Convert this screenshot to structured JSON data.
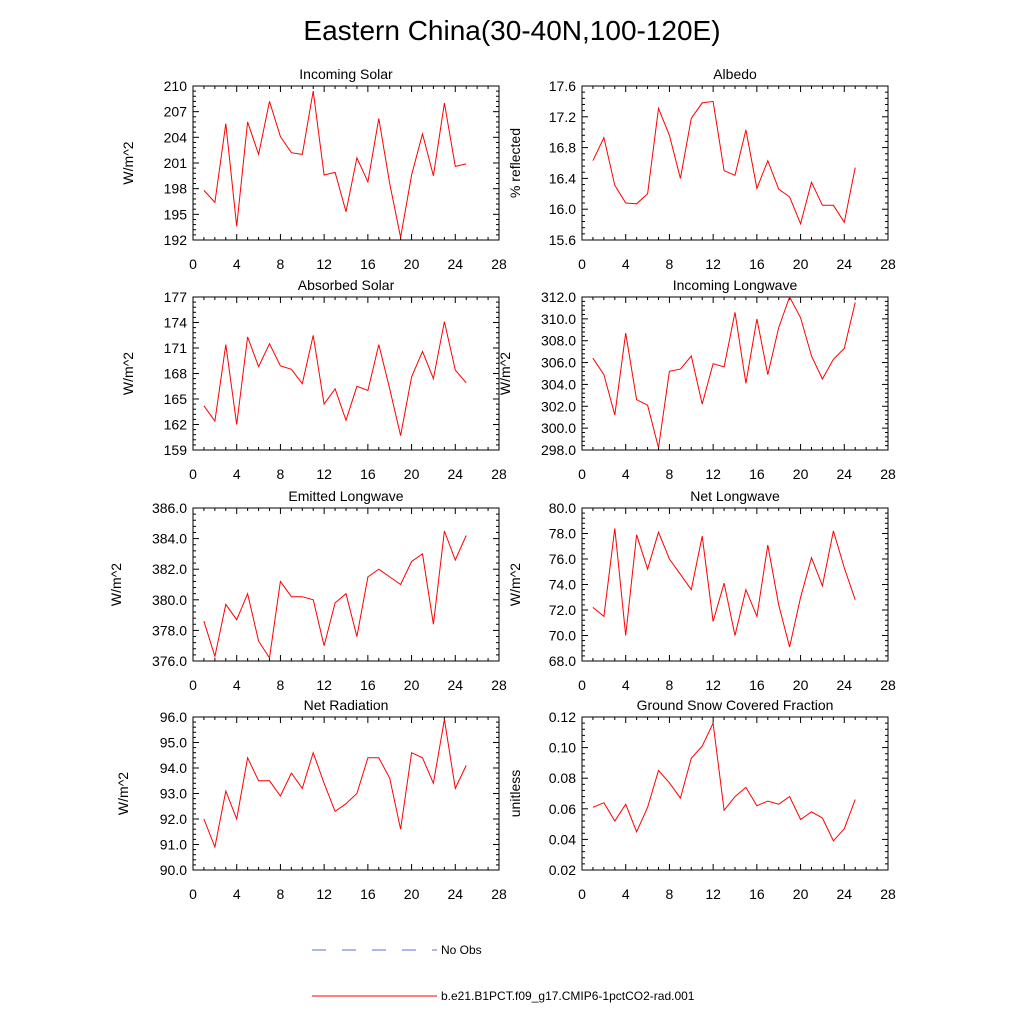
{
  "title": "Eastern China(30-40N,100-120E)",
  "legend": {
    "obs_label": "No Obs",
    "obs_color": "#5a6fd6",
    "model_label": "b.e21.B1PCT.f09_g17.CMIP6-1pctCO2-rad.001",
    "model_color": "#ff0000"
  },
  "chart_data": [
    {
      "type": "line",
      "title": "Incoming Solar",
      "xlabel": "",
      "ylabel": "W/m^2",
      "xlim": [
        0,
        28
      ],
      "xticks": [
        0,
        4,
        8,
        12,
        16,
        20,
        24,
        28
      ],
      "ylim": [
        192,
        210
      ],
      "yticks": [
        192,
        195,
        198,
        201,
        204,
        207,
        210
      ],
      "ytick_labels": [
        "192",
        "195",
        "198",
        "201",
        "204",
        "207",
        "210"
      ],
      "series": [
        {
          "x": [
            1,
            2,
            3,
            4,
            5,
            6,
            7,
            8,
            9,
            10,
            11,
            12,
            13,
            14,
            15,
            16,
            17,
            18,
            19,
            20,
            21,
            22,
            23,
            24,
            25
          ],
          "values": [
            197.8,
            196.4,
            205.6,
            193.6,
            205.8,
            202.0,
            208.2,
            204.1,
            202.2,
            202.0,
            209.4,
            199.6,
            199.9,
            195.3,
            201.6,
            198.8,
            206.2,
            198.6,
            192.3,
            199.6,
            204.4,
            199.5,
            208.0,
            200.6,
            200.9
          ]
        }
      ]
    },
    {
      "type": "line",
      "title": "Albedo",
      "xlabel": "",
      "ylabel": "% reflected",
      "xlim": [
        0,
        28
      ],
      "xticks": [
        0,
        4,
        8,
        12,
        16,
        20,
        24,
        28
      ],
      "ylim": [
        15.6,
        17.6
      ],
      "yticks": [
        15.6,
        16.0,
        16.4,
        16.8,
        17.2,
        17.6
      ],
      "ytick_labels": [
        "15.6",
        "16.0",
        "16.4",
        "16.8",
        "17.2",
        "17.6"
      ],
      "series": [
        {
          "x": [
            1,
            2,
            3,
            4,
            5,
            6,
            7,
            8,
            9,
            10,
            11,
            12,
            13,
            14,
            15,
            16,
            17,
            18,
            19,
            20,
            21,
            22,
            23,
            24,
            25
          ],
          "values": [
            16.63,
            16.93,
            16.31,
            16.08,
            16.07,
            16.2,
            17.31,
            16.96,
            16.4,
            17.18,
            17.38,
            17.4,
            16.5,
            16.44,
            17.03,
            16.27,
            16.63,
            16.26,
            16.16,
            15.81,
            16.35,
            16.05,
            16.05,
            15.83,
            16.54
          ]
        }
      ]
    },
    {
      "type": "line",
      "title": "Absorbed Solar",
      "xlabel": "",
      "ylabel": "W/m^2",
      "xlim": [
        0,
        28
      ],
      "xticks": [
        0,
        4,
        8,
        12,
        16,
        20,
        24,
        28
      ],
      "ylim": [
        159,
        177
      ],
      "yticks": [
        159,
        162,
        165,
        168,
        171,
        174,
        177
      ],
      "ytick_labels": [
        "159",
        "162",
        "165",
        "168",
        "171",
        "174",
        "177"
      ],
      "series": [
        {
          "x": [
            1,
            2,
            3,
            4,
            5,
            6,
            7,
            8,
            9,
            10,
            11,
            12,
            13,
            14,
            15,
            16,
            17,
            18,
            19,
            20,
            21,
            22,
            23,
            24,
            25
          ],
          "values": [
            164.2,
            162.4,
            171.4,
            162.0,
            172.3,
            168.8,
            171.5,
            168.9,
            168.5,
            166.8,
            172.5,
            164.4,
            166.2,
            162.5,
            166.5,
            166.0,
            171.4,
            166.2,
            160.7,
            167.6,
            170.6,
            167.4,
            174.1,
            168.4,
            166.9
          ]
        }
      ]
    },
    {
      "type": "line",
      "title": "Incoming Longwave",
      "xlabel": "",
      "ylabel": "W/m^2",
      "xlim": [
        0,
        28
      ],
      "xticks": [
        0,
        4,
        8,
        12,
        16,
        20,
        24,
        28
      ],
      "ylim": [
        298.0,
        312.0
      ],
      "yticks": [
        298.0,
        300.0,
        302.0,
        304.0,
        306.0,
        308.0,
        310.0,
        312.0
      ],
      "ytick_labels": [
        "298.0",
        "300.0",
        "302.0",
        "304.0",
        "306.0",
        "308.0",
        "310.0",
        "312.0"
      ],
      "series": [
        {
          "x": [
            1,
            2,
            3,
            4,
            5,
            6,
            7,
            8,
            9,
            10,
            11,
            12,
            13,
            14,
            15,
            16,
            17,
            18,
            19,
            20,
            21,
            22,
            23,
            24,
            25
          ],
          "values": [
            306.4,
            304.9,
            301.2,
            308.7,
            302.6,
            302.1,
            298.2,
            305.2,
            305.4,
            306.6,
            302.2,
            305.9,
            305.6,
            310.6,
            304.1,
            310.0,
            304.9,
            309.2,
            312.0,
            310.1,
            306.6,
            304.5,
            306.3,
            307.3,
            311.5
          ]
        }
      ]
    },
    {
      "type": "line",
      "title": "Emitted Longwave",
      "xlabel": "",
      "ylabel": "W/m^2",
      "xlim": [
        0,
        28
      ],
      "xticks": [
        0,
        4,
        8,
        12,
        16,
        20,
        24,
        28
      ],
      "ylim": [
        376.0,
        386.0
      ],
      "yticks": [
        376.0,
        378.0,
        380.0,
        382.0,
        384.0,
        386.0
      ],
      "ytick_labels": [
        "376.0",
        "378.0",
        "380.0",
        "382.0",
        "384.0",
        "386.0"
      ],
      "series": [
        {
          "x": [
            1,
            2,
            3,
            4,
            5,
            6,
            7,
            8,
            9,
            10,
            11,
            12,
            13,
            14,
            15,
            16,
            17,
            18,
            19,
            20,
            21,
            22,
            23,
            24,
            25
          ],
          "values": [
            378.6,
            376.3,
            379.7,
            378.7,
            380.4,
            377.3,
            376.2,
            381.2,
            380.2,
            380.2,
            380.0,
            377.0,
            379.8,
            380.4,
            377.6,
            381.5,
            382.0,
            381.5,
            381.0,
            382.5,
            383.0,
            378.4,
            384.5,
            382.6,
            384.2
          ]
        }
      ]
    },
    {
      "type": "line",
      "title": "Net Longwave",
      "xlabel": "",
      "ylabel": "W/m^2",
      "xlim": [
        0,
        28
      ],
      "xticks": [
        0,
        4,
        8,
        12,
        16,
        20,
        24,
        28
      ],
      "ylim": [
        68.0,
        80.0
      ],
      "yticks": [
        68.0,
        70.0,
        72.0,
        74.0,
        76.0,
        78.0,
        80.0
      ],
      "ytick_labels": [
        "68.0",
        "70.0",
        "72.0",
        "74.0",
        "76.0",
        "78.0",
        "80.0"
      ],
      "series": [
        {
          "x": [
            1,
            2,
            3,
            4,
            5,
            6,
            7,
            8,
            9,
            10,
            11,
            12,
            13,
            14,
            15,
            16,
            17,
            18,
            19,
            20,
            21,
            22,
            23,
            24,
            25
          ],
          "values": [
            72.2,
            71.5,
            78.4,
            70.0,
            77.9,
            75.2,
            78.1,
            76.0,
            74.8,
            73.6,
            77.8,
            71.1,
            74.1,
            70.0,
            73.6,
            71.5,
            77.1,
            72.4,
            69.1,
            73.0,
            76.1,
            73.9,
            78.2,
            75.3,
            72.8
          ]
        }
      ]
    },
    {
      "type": "line",
      "title": "Net Radiation",
      "xlabel": "",
      "ylabel": "W/m^2",
      "xlim": [
        0,
        28
      ],
      "xticks": [
        0,
        4,
        8,
        12,
        16,
        20,
        24,
        28
      ],
      "ylim": [
        90.0,
        96.0
      ],
      "yticks": [
        90.0,
        91.0,
        92.0,
        93.0,
        94.0,
        95.0,
        96.0
      ],
      "ytick_labels": [
        "90.0",
        "91.0",
        "92.0",
        "93.0",
        "94.0",
        "95.0",
        "96.0"
      ],
      "series": [
        {
          "x": [
            1,
            2,
            3,
            4,
            5,
            6,
            7,
            8,
            9,
            10,
            11,
            12,
            13,
            14,
            15,
            16,
            17,
            18,
            19,
            20,
            21,
            22,
            23,
            24,
            25
          ],
          "values": [
            92.0,
            90.9,
            93.1,
            92.0,
            94.4,
            93.5,
            93.5,
            92.9,
            93.8,
            93.2,
            94.6,
            93.4,
            92.3,
            92.6,
            93.0,
            94.4,
            94.4,
            93.6,
            91.6,
            94.6,
            94.4,
            93.4,
            95.9,
            93.2,
            94.1
          ]
        }
      ]
    },
    {
      "type": "line",
      "title": "Ground Snow Covered Fraction",
      "xlabel": "",
      "ylabel": "unitless",
      "xlim": [
        0,
        28
      ],
      "xticks": [
        0,
        4,
        8,
        12,
        16,
        20,
        24,
        28
      ],
      "ylim": [
        0.02,
        0.12
      ],
      "yticks": [
        0.02,
        0.04,
        0.06,
        0.08,
        0.1,
        0.12
      ],
      "ytick_labels": [
        "0.02",
        "0.04",
        "0.06",
        "0.08",
        "0.10",
        "0.12"
      ],
      "series": [
        {
          "x": [
            1,
            2,
            3,
            4,
            5,
            6,
            7,
            8,
            9,
            10,
            11,
            12,
            13,
            14,
            15,
            16,
            17,
            18,
            19,
            20,
            21,
            22,
            23,
            24,
            25
          ],
          "values": [
            0.061,
            0.064,
            0.052,
            0.063,
            0.045,
            0.061,
            0.085,
            0.077,
            0.067,
            0.093,
            0.101,
            0.116,
            0.059,
            0.068,
            0.074,
            0.062,
            0.065,
            0.063,
            0.068,
            0.053,
            0.058,
            0.054,
            0.039,
            0.047,
            0.066
          ]
        }
      ]
    }
  ]
}
